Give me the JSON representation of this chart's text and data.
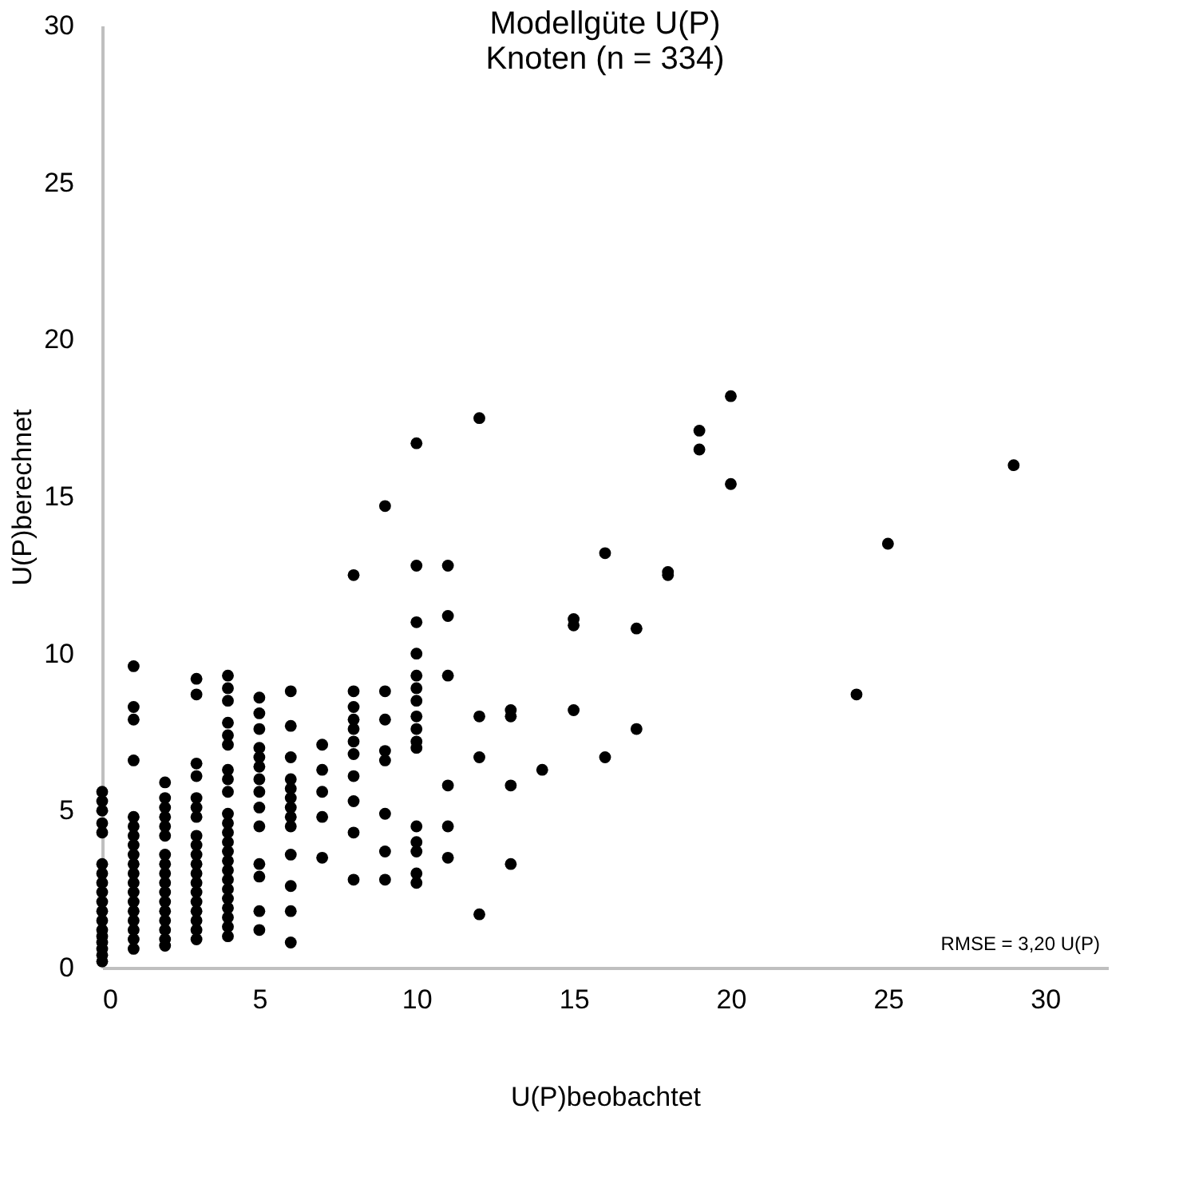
{
  "chart_data": {
    "type": "scatter",
    "title": [
      "Modellgüte U(P)",
      "Knoten (n = 334)"
    ],
    "xlabel": "U(P)beobachtet",
    "ylabel": "U(P)berechnet",
    "annotations": [
      "RMSE = 3,20 U(P)"
    ],
    "x": [
      0,
      0,
      0,
      0,
      0,
      0,
      0,
      0,
      0,
      0,
      0,
      0,
      0,
      0,
      0,
      0,
      0,
      0,
      1,
      1,
      1,
      1,
      1,
      1,
      1,
      1,
      1,
      1,
      1,
      1,
      1,
      1,
      1,
      1,
      1,
      1,
      1,
      2,
      2,
      2,
      2,
      2,
      2,
      2,
      2,
      2,
      2,
      2,
      2,
      2,
      2,
      2,
      2,
      2,
      3,
      3,
      3,
      3,
      3,
      3,
      3,
      3,
      3,
      3,
      3,
      3,
      3,
      3,
      3,
      3,
      3,
      3,
      3,
      4,
      4,
      4,
      4,
      4,
      4,
      4,
      4,
      4,
      4,
      4,
      4,
      4,
      4,
      4,
      4,
      4,
      4,
      4,
      4,
      4,
      4,
      4,
      5,
      5,
      5,
      5,
      5,
      5,
      5,
      5,
      5,
      5,
      5,
      5,
      5,
      5,
      6,
      6,
      6,
      6,
      6,
      6,
      6,
      6,
      6,
      6,
      6,
      6,
      6,
      7,
      7,
      7,
      7,
      7,
      8,
      8,
      8,
      8,
      8,
      8,
      8,
      8,
      8,
      8,
      8,
      9,
      9,
      9,
      9,
      9,
      9,
      9,
      9,
      10,
      10,
      10,
      10,
      10,
      10,
      10,
      10,
      10,
      10,
      10,
      10,
      10,
      10,
      10,
      10,
      11,
      11,
      11,
      11,
      11,
      11,
      12,
      12,
      12,
      12,
      13,
      13,
      13,
      13,
      14,
      15,
      15,
      15,
      16,
      16,
      17,
      17,
      18,
      18,
      19,
      19,
      20,
      20,
      24,
      25,
      29
    ],
    "values": [
      5.6,
      5.3,
      5.0,
      4.6,
      4.3,
      3.3,
      3.0,
      2.7,
      2.4,
      2.1,
      1.8,
      1.5,
      1.2,
      1.0,
      0.8,
      0.6,
      0.4,
      0.2,
      9.6,
      8.3,
      7.9,
      6.6,
      4.8,
      4.5,
      4.2,
      3.9,
      3.6,
      3.3,
      3.0,
      2.7,
      2.4,
      2.1,
      1.8,
      1.5,
      1.2,
      0.9,
      0.6,
      5.9,
      5.4,
      5.1,
      4.8,
      4.5,
      4.2,
      3.6,
      3.3,
      3.0,
      2.7,
      2.4,
      2.1,
      1.8,
      1.5,
      1.2,
      0.9,
      0.7,
      9.2,
      8.7,
      6.5,
      6.1,
      5.4,
      5.1,
      4.8,
      4.2,
      3.9,
      3.6,
      3.3,
      3.0,
      2.7,
      2.4,
      2.1,
      1.8,
      1.5,
      1.2,
      0.9,
      9.3,
      8.9,
      8.5,
      7.8,
      7.4,
      7.1,
      6.3,
      6.0,
      5.6,
      4.9,
      4.6,
      4.3,
      4.0,
      3.7,
      3.4,
      3.1,
      2.8,
      2.5,
      2.2,
      1.9,
      1.6,
      1.3,
      1.0,
      8.6,
      8.1,
      7.6,
      7.0,
      6.7,
      6.4,
      6.0,
      5.6,
      5.1,
      4.5,
      3.3,
      2.9,
      1.8,
      1.2,
      8.8,
      7.7,
      6.7,
      6.0,
      5.7,
      5.4,
      5.1,
      4.8,
      4.5,
      3.6,
      2.6,
      1.8,
      0.8,
      7.1,
      6.3,
      5.6,
      4.8,
      3.5,
      12.5,
      8.8,
      8.3,
      7.9,
      7.6,
      7.2,
      6.8,
      6.1,
      5.3,
      4.3,
      2.8,
      14.7,
      8.8,
      7.9,
      6.9,
      6.6,
      4.9,
      3.7,
      2.8,
      16.7,
      12.8,
      11.0,
      10.0,
      9.3,
      8.9,
      8.5,
      8.0,
      7.6,
      7.2,
      7.0,
      4.5,
      4.0,
      3.7,
      3.0,
      2.7,
      12.8,
      11.2,
      9.3,
      5.8,
      4.5,
      3.5,
      17.5,
      8.0,
      6.7,
      1.7,
      8.2,
      8.0,
      5.8,
      3.3,
      6.3,
      11.1,
      10.9,
      8.2,
      13.2,
      6.7,
      10.8,
      7.6,
      12.6,
      12.5,
      17.1,
      16.5,
      18.2,
      15.4,
      8.7,
      13.5,
      16.0
    ],
    "color": "#000000",
    "marker": "circle",
    "grid": false,
    "xlim": [
      0,
      32
    ],
    "ylim": [
      0,
      30
    ],
    "xticks": [
      0,
      5,
      10,
      15,
      20,
      25,
      30
    ],
    "yticks": [
      0,
      5,
      10,
      15,
      20,
      25,
      30
    ]
  }
}
